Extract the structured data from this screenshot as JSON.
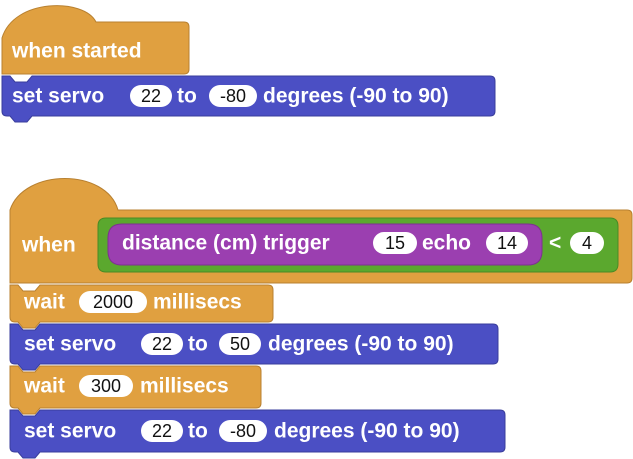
{
  "colors": {
    "event": "#E0A040",
    "event_dark": "#B88030",
    "servo": "#4B4FC4",
    "servo_dark": "#3A3E9C",
    "condition": "#5BA82E",
    "condition_dark": "#4A8A25",
    "sensor": "#9B3FB0",
    "sensor_dark": "#7D3190",
    "wait": "#E0A040"
  },
  "script1": {
    "hat_label": "when started",
    "servo": {
      "prefix": "set servo",
      "pin": "22",
      "mid": "to",
      "angle": "-80",
      "suffix": "degrees (-90 to 90)"
    }
  },
  "script2": {
    "when_label": "when",
    "sensor": {
      "prefix": "distance (cm) trigger",
      "trigger": "15",
      "mid": "echo",
      "echo": "14"
    },
    "operator": "<",
    "threshold": "4",
    "wait1": {
      "prefix": "wait",
      "value": "2000",
      "suffix": "millisecs"
    },
    "servo1": {
      "prefix": "set servo",
      "pin": "22",
      "mid": "to",
      "angle": "50",
      "suffix": "degrees (-90 to 90)"
    },
    "wait2": {
      "prefix": "wait",
      "value": "300",
      "suffix": "millisecs"
    },
    "servo2": {
      "prefix": "set servo",
      "pin": "22",
      "mid": "to",
      "angle": "-80",
      "suffix": "degrees (-90 to 90)"
    }
  }
}
